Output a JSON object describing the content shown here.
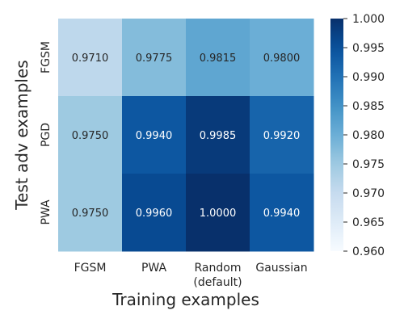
{
  "chart_data": {
    "type": "heatmap",
    "xlabel": "Training examples",
    "ylabel": "Test adv examples",
    "x_categories": [
      "FGSM",
      "PWA",
      "Random\n(default)",
      "Gaussian"
    ],
    "y_categories": [
      "FGSM",
      "PGD",
      "PWA"
    ],
    "values": [
      [
        0.971,
        0.9775,
        0.9815,
        0.98
      ],
      [
        0.975,
        0.994,
        0.9985,
        0.992
      ],
      [
        0.975,
        0.996,
        1.0,
        0.994
      ]
    ],
    "value_labels": [
      [
        "0.9710",
        "0.9775",
        "0.9815",
        "0.9800"
      ],
      [
        "0.9750",
        "0.9940",
        "0.9985",
        "0.9920"
      ],
      [
        "0.9750",
        "0.9960",
        "1.0000",
        "0.9940"
      ]
    ],
    "colormap": "Blues",
    "vmin": 0.96,
    "vmax": 1.0,
    "colorbar_ticks": [
      "0.960",
      "0.965",
      "0.970",
      "0.975",
      "0.980",
      "0.985",
      "0.990",
      "0.995",
      "1.000"
    ],
    "colorbar_position": "right"
  }
}
